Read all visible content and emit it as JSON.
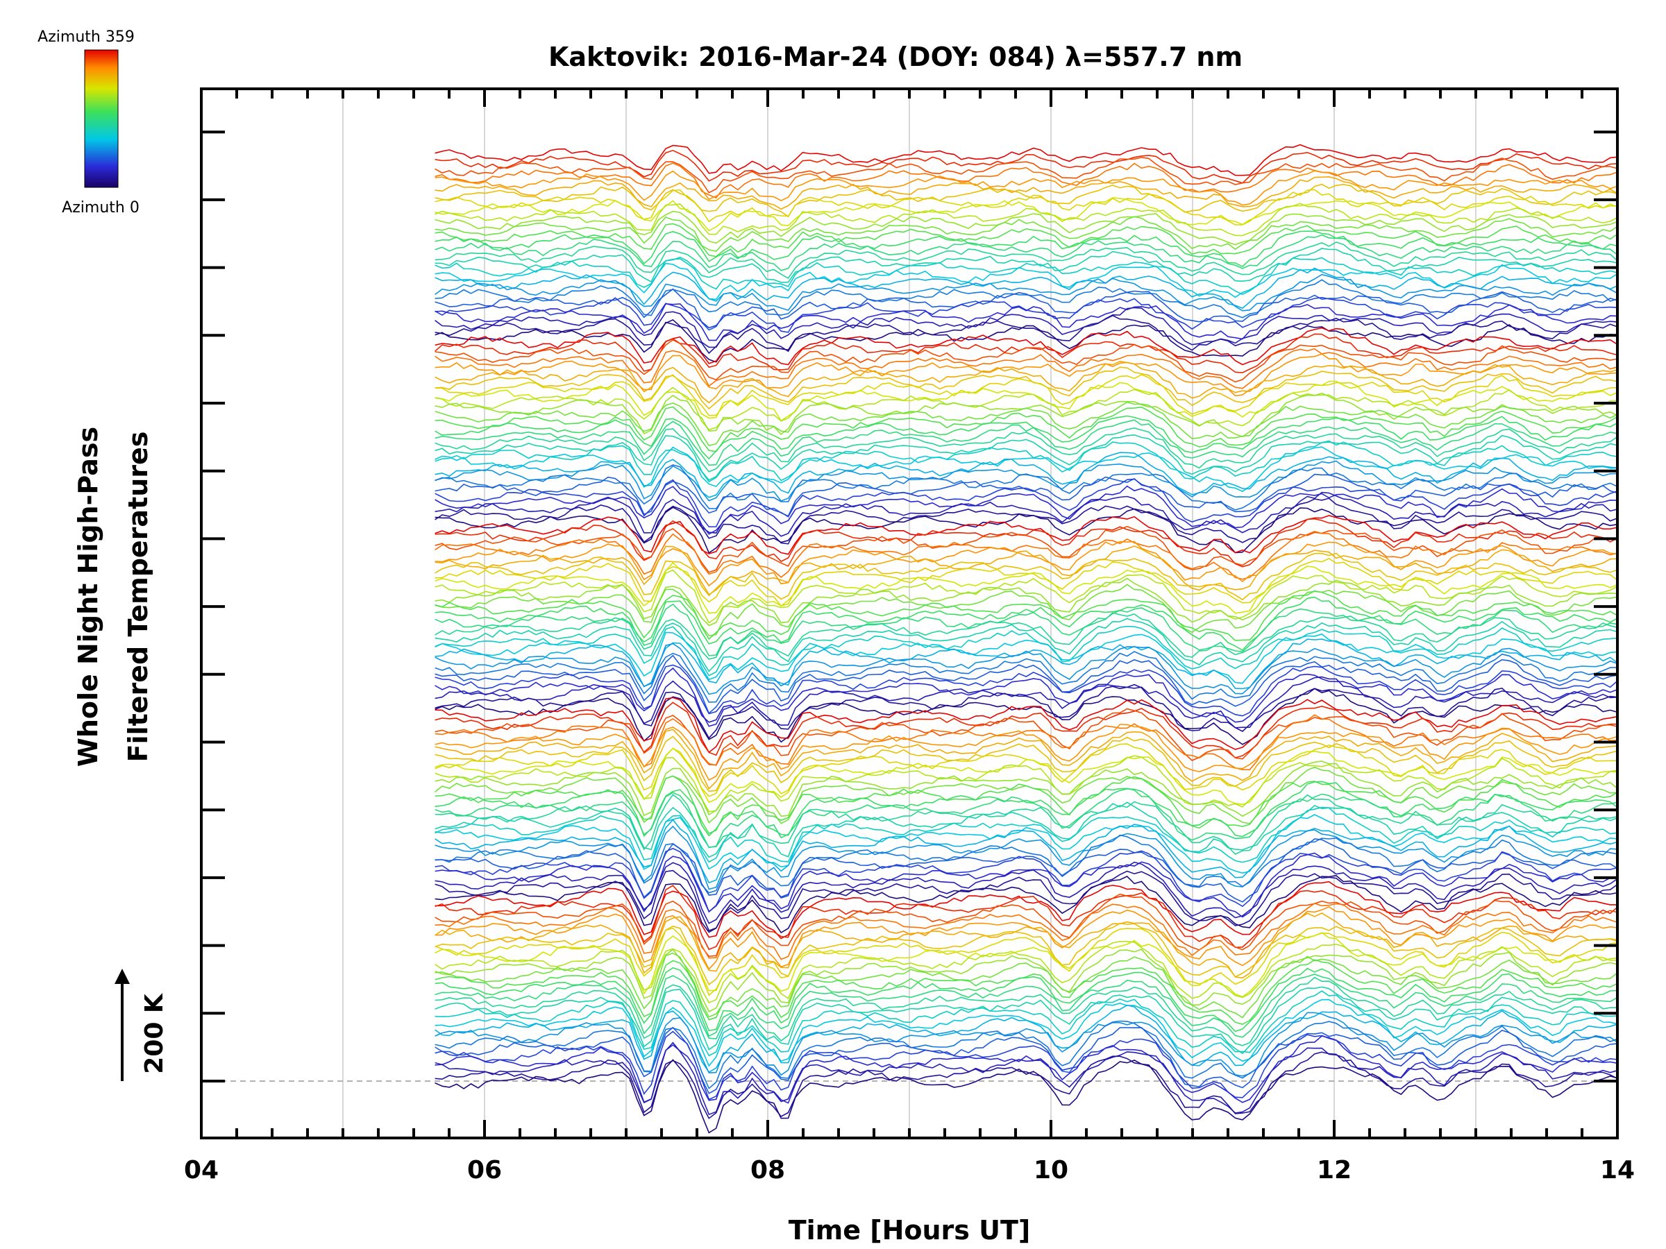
{
  "chart_data": {
    "type": "line",
    "title": "Kaktovik: 2016-Mar-24 (DOY: 084) λ=557.7 nm",
    "xlabel": "Time [Hours UT]",
    "ylabel_line1": "Whole Night High-Pass",
    "ylabel_line2": "Filtered Temperatures",
    "xlim": [
      4,
      14
    ],
    "x_ticks": [
      4,
      6,
      8,
      10,
      12,
      14
    ],
    "x_tick_labels": [
      "04",
      "06",
      "08",
      "10",
      "12",
      "14"
    ],
    "data_start_hour": 5.65,
    "scale_bar_label": "200 K",
    "colorbar": {
      "top_label": "Azimuth 359",
      "bottom_label": "Azimuth 0",
      "colormap": "rainbow"
    },
    "series_count": 140,
    "azimuth_range": [
      0,
      359
    ],
    "note": "Stacked high-pass filtered temperature traces, one per azimuth, colored by azimuth; common disturbance features near 07.2, 07.6, 08.1, 10.1, 11.0 and 11.3 UT."
  },
  "colors": {
    "axis": "#000000",
    "grid": "#cccccc",
    "baseline": "#999999"
  }
}
